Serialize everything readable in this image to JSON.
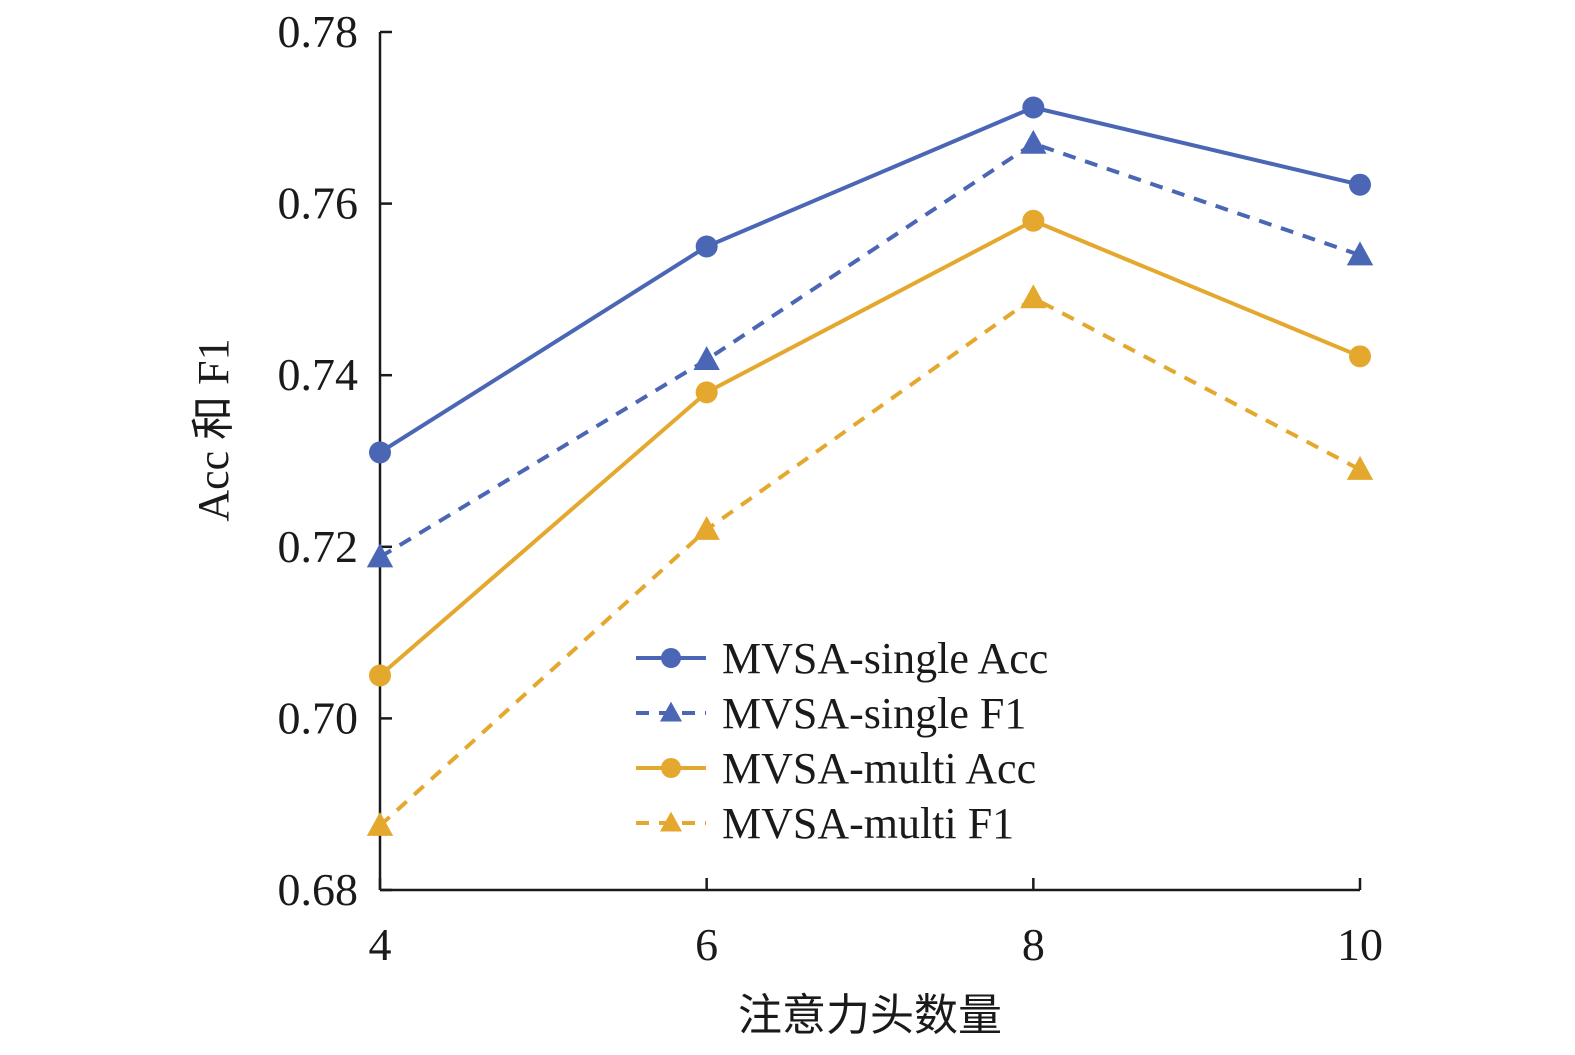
{
  "chart_data": {
    "type": "line",
    "title": "",
    "xlabel": "注意力头数量",
    "ylabel": "Acc 和 F1",
    "x": [
      4,
      6,
      8,
      10
    ],
    "xticks": [
      "4",
      "6",
      "8",
      "10"
    ],
    "yticks": [
      "0.68",
      "0.70",
      "0.72",
      "0.74",
      "0.76",
      "0.78"
    ],
    "ylim": [
      0.68,
      0.78
    ],
    "grid": false,
    "legend_position": "lower-center",
    "series": [
      {
        "name": "MVSA-single Acc",
        "values": [
          0.731,
          0.755,
          0.7712,
          0.7622
        ],
        "color": "#4a66b5",
        "dash": "solid",
        "marker": "circle"
      },
      {
        "name": "MVSA-single F1",
        "values": [
          0.7188,
          0.7418,
          0.767,
          0.754
        ],
        "color": "#4a66b5",
        "dash": "dashed",
        "marker": "triangle"
      },
      {
        "name": "MVSA-multi Acc",
        "values": [
          0.705,
          0.738,
          0.758,
          0.7422
        ],
        "color": "#e5a82e",
        "dash": "solid",
        "marker": "circle"
      },
      {
        "name": "MVSA-multi F1",
        "values": [
          0.6875,
          0.722,
          0.749,
          0.729
        ],
        "color": "#e5a82e",
        "dash": "dashed",
        "marker": "triangle"
      }
    ]
  }
}
